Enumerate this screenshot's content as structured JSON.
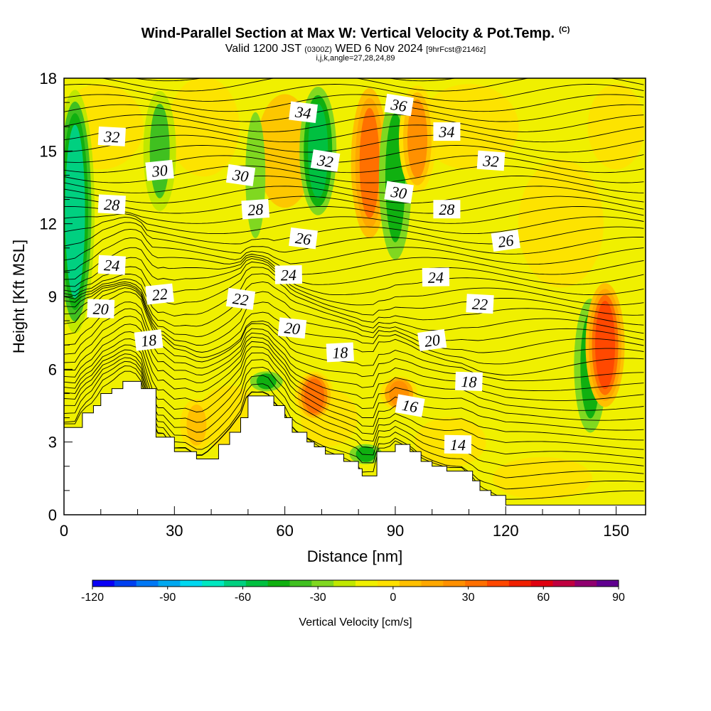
{
  "header": {
    "title": "Wind-Parallel Section at Max W: Vertical Velocity & Pot.Temp.",
    "copyright": "(C)",
    "valid_prefix": "Valid 1200 JST",
    "valid_utc": "(0300Z)",
    "valid_date": "WED 6 Nov 2024",
    "forecast": "[9hrFcst@2146z]",
    "indices": "i,j,k,angle=27,28,24,89"
  },
  "chart_data": {
    "type": "heatmap",
    "title": "Wind-Parallel Section at Max W: Vertical Velocity & Pot.Temp.",
    "xlabel": "Distance [nm]",
    "ylabel": "Height [Kft MSL]",
    "xlim": [
      0,
      158
    ],
    "ylim": [
      0,
      18
    ],
    "x_ticks": [
      0,
      30,
      60,
      90,
      120,
      150
    ],
    "y_ticks": [
      0,
      3,
      6,
      9,
      12,
      15,
      18
    ],
    "colorbar": {
      "title": "Vertical Velocity [cm/s]",
      "min": -120,
      "max": 90,
      "step": 10,
      "tick_values": [
        -120,
        -90,
        -60,
        -30,
        0,
        30,
        60,
        90
      ],
      "tick_labels": [
        "-120",
        "-90",
        "-60",
        "-30",
        "0",
        "30",
        "60",
        "90"
      ],
      "colors": [
        "#0a00f5",
        "#0040f0",
        "#0078f5",
        "#00a8f0",
        "#00d8f0",
        "#00e8c0",
        "#00d080",
        "#00c040",
        "#10b010",
        "#40c020",
        "#80d820",
        "#c0e800",
        "#f0f000",
        "#ffe000",
        "#ffc000",
        "#ffa800",
        "#ff9000",
        "#ff7000",
        "#ff4800",
        "#f02000",
        "#e00010",
        "#c00040",
        "#900070",
        "#600090"
      ]
    },
    "velocity_features": [
      {
        "x": 3,
        "y_bottom": 7.0,
        "y_top": 18,
        "w": -55
      },
      {
        "x": 26,
        "y_bottom": 12.0,
        "y_top": 18,
        "w": -25
      },
      {
        "x": 52,
        "y_bottom": 10.0,
        "y_top": 18,
        "w": -20
      },
      {
        "x": 55,
        "y_bottom": 5.0,
        "y_top": 6.0,
        "w": -35
      },
      {
        "x": 69,
        "y_bottom": 12.0,
        "y_top": 18,
        "w": -50
      },
      {
        "x": 68,
        "y_bottom": 3.8,
        "y_top": 6.0,
        "w": 55
      },
      {
        "x": 83,
        "y_bottom": 11.0,
        "y_top": 18,
        "w": 50
      },
      {
        "x": 90,
        "y_bottom": 9.8,
        "y_top": 18,
        "w": -35
      },
      {
        "x": 91,
        "y_bottom": 4.2,
        "y_top": 5.8,
        "w": 45
      },
      {
        "x": 96,
        "y_bottom": 13.0,
        "y_top": 18,
        "w": 40
      },
      {
        "x": 143,
        "y_bottom": 2.8,
        "y_top": 9.5,
        "w": -35
      },
      {
        "x": 147,
        "y_bottom": 4.2,
        "y_top": 9.8,
        "w": 65
      },
      {
        "x": 36,
        "y_bottom": 2.4,
        "y_top": 5.0,
        "w": 25
      },
      {
        "x": 82,
        "y_bottom": 2.0,
        "y_top": 3.0,
        "w": -35
      }
    ],
    "terrain": {
      "x": [
        0,
        3,
        5,
        8,
        10,
        13,
        16,
        19,
        21,
        25,
        27,
        30,
        33,
        36,
        38,
        42,
        45,
        48,
        50,
        55,
        57,
        60,
        62,
        66,
        68,
        71,
        76,
        80,
        81,
        84,
        85,
        88,
        90,
        94,
        97,
        100,
        104,
        108,
        111,
        113,
        116,
        120,
        158
      ],
      "height": [
        3.6,
        3.6,
        4.2,
        4.5,
        5.0,
        5.2,
        5.5,
        5.5,
        5.2,
        3.2,
        3.2,
        2.6,
        2.6,
        2.3,
        2.3,
        2.9,
        3.4,
        4.0,
        4.9,
        4.9,
        4.5,
        4.0,
        3.4,
        3.0,
        2.8,
        2.5,
        2.2,
        1.9,
        1.6,
        1.6,
        2.6,
        2.6,
        2.9,
        2.6,
        2.2,
        2.0,
        1.8,
        1.8,
        1.4,
        1.0,
        0.8,
        0.4,
        0.4
      ]
    },
    "contour_labels": [
      {
        "text": "32",
        "x": 13,
        "y": 15.6
      },
      {
        "text": "30",
        "x": 26,
        "y": 14.2
      },
      {
        "text": "28",
        "x": 13,
        "y": 12.8
      },
      {
        "text": "24",
        "x": 13,
        "y": 10.3
      },
      {
        "text": "22",
        "x": 26,
        "y": 9.1
      },
      {
        "text": "20",
        "x": 10,
        "y": 8.5
      },
      {
        "text": "18",
        "x": 23,
        "y": 7.2
      },
      {
        "text": "30",
        "x": 48,
        "y": 14.0
      },
      {
        "text": "28",
        "x": 52,
        "y": 12.6
      },
      {
        "text": "22",
        "x": 48,
        "y": 8.9
      },
      {
        "text": "34",
        "x": 65,
        "y": 16.6
      },
      {
        "text": "32",
        "x": 71,
        "y": 14.6
      },
      {
        "text": "26",
        "x": 65,
        "y": 11.4
      },
      {
        "text": "24",
        "x": 61,
        "y": 9.9
      },
      {
        "text": "20",
        "x": 62,
        "y": 7.7
      },
      {
        "text": "18",
        "x": 75,
        "y": 6.7
      },
      {
        "text": "36",
        "x": 91,
        "y": 16.9
      },
      {
        "text": "30",
        "x": 91,
        "y": 13.3
      },
      {
        "text": "34",
        "x": 104,
        "y": 15.8
      },
      {
        "text": "28",
        "x": 104,
        "y": 12.6
      },
      {
        "text": "24",
        "x": 101,
        "y": 9.8
      },
      {
        "text": "20",
        "x": 100,
        "y": 7.2
      },
      {
        "text": "16",
        "x": 94,
        "y": 4.5
      },
      {
        "text": "14",
        "x": 107,
        "y": 2.9
      },
      {
        "text": "32",
        "x": 116,
        "y": 14.6
      },
      {
        "text": "26",
        "x": 120,
        "y": 11.3
      },
      {
        "text": "22",
        "x": 113,
        "y": 8.7
      },
      {
        "text": "18",
        "x": 110,
        "y": 5.5
      }
    ]
  }
}
